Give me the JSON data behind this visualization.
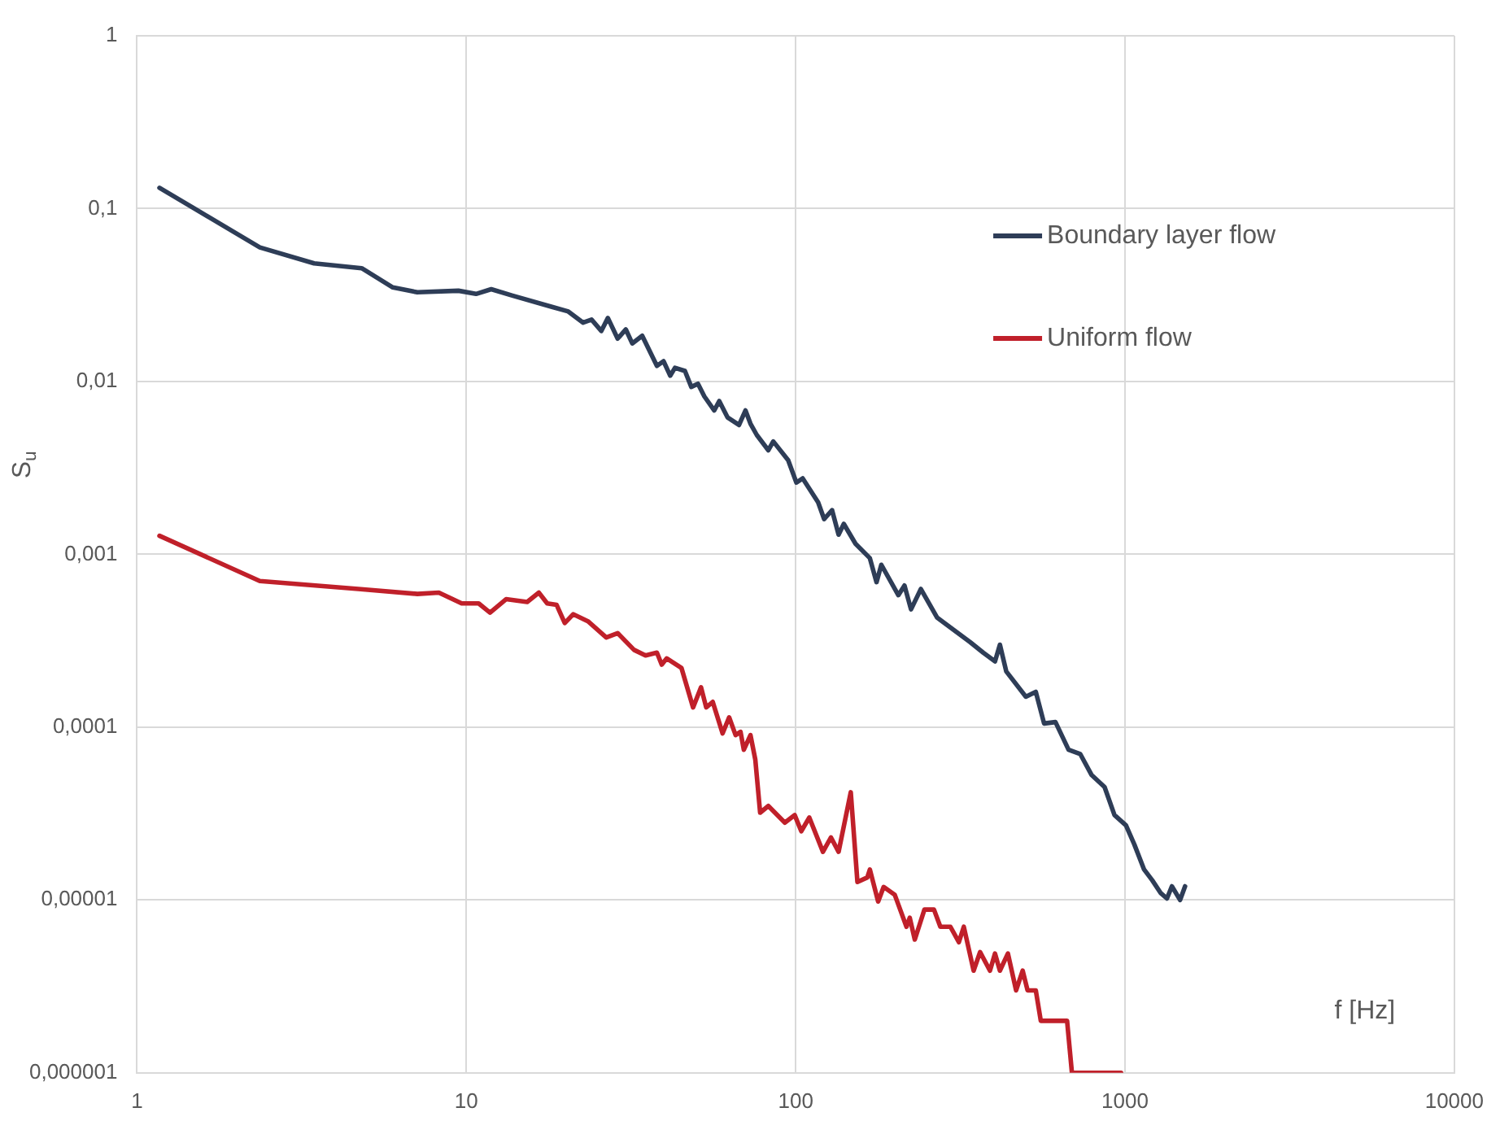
{
  "chart_data": {
    "type": "line",
    "xlabel": "f [Hz]",
    "ylabel": "S$_{u}$",
    "log": "xy",
    "grid": true,
    "legend": "top right",
    "marker": "none",
    "line_style": "solid",
    "xlim": [
      1,
      10000
    ],
    "xticks": [
      1,
      10,
      100,
      1000,
      10000
    ],
    "ylim": [
      1e-06,
      1
    ],
    "yticks": [
      {
        "value": 1e-06,
        "label": "0,000001"
      },
      {
        "value": 1e-05,
        "label": "0,00001"
      },
      {
        "value": 0.0001,
        "label": "0,0001"
      },
      {
        "value": 0.001,
        "label": "0,001"
      },
      {
        "value": 0.01,
        "label": "0,01"
      },
      {
        "value": 0.1,
        "label": "0,1"
      },
      {
        "value": 1,
        "label": "1"
      }
    ],
    "series": [
      {
        "name": "Boundary layer flow",
        "color": "#2e3d57",
        "x": [
          1.17,
          2.36,
          3.45,
          4.81,
          5.98,
          7.1,
          9.46,
          10.7,
          11.9,
          13.8,
          18.2,
          20.4,
          22.6,
          24,
          25.7,
          26.9,
          28.8,
          30.5,
          31.9,
          34.2,
          37.9,
          39.7,
          41.6,
          43,
          46.1,
          48.2,
          50.5,
          52.8,
          56.6,
          58.6,
          62.1,
          67.3,
          70.4,
          72.9,
          76.2,
          82.6,
          85.5,
          94.9,
          100.5,
          105,
          117,
          122,
          129,
          135,
          140,
          152,
          168,
          176,
          182,
          205,
          214,
          224,
          240,
          269,
          339,
          371,
          403,
          417,
          436,
          500,
          536,
          568,
          615,
          674,
          731,
          791,
          867,
          929,
          1007,
          1067,
          1143,
          1210,
          1282,
          1341,
          1388,
          1470,
          1522
        ],
        "values": [
          0.132,
          0.0597,
          0.0482,
          0.0452,
          0.035,
          0.0328,
          0.0335,
          0.0321,
          0.0342,
          0.0314,
          0.027,
          0.0254,
          0.0219,
          0.0228,
          0.0196,
          0.0233,
          0.0177,
          0.02,
          0.0166,
          0.0184,
          0.0123,
          0.0131,
          0.0108,
          0.012,
          0.0115,
          0.0093,
          0.0097,
          0.0082,
          0.0068,
          0.0077,
          0.0062,
          0.0056,
          0.0068,
          0.0057,
          0.0049,
          0.004,
          0.0045,
          0.0035,
          0.0026,
          0.00275,
          0.002,
          0.0016,
          0.0018,
          0.0013,
          0.0015,
          0.00115,
          0.00095,
          0.00069,
          0.00087,
          0.00058,
          0.00066,
          0.00048,
          0.00063,
          0.00043,
          0.00031,
          0.00027,
          0.00024,
          0.0003,
          0.00021,
          0.00015,
          0.00016,
          0.000105,
          0.000107,
          7.4e-05,
          7e-05,
          5.3e-05,
          4.5e-05,
          3.1e-05,
          2.7e-05,
          2.1e-05,
          1.5e-05,
          1.3e-05,
          1.1e-05,
          1.02e-05,
          1.2e-05,
          1e-05,
          1.2e-05
        ]
      },
      {
        "name": "Uniform flow",
        "color": "#c0202a",
        "x": [
          1.17,
          2.36,
          4.7,
          7.1,
          8.25,
          9.68,
          10.9,
          11.8,
          13.2,
          15.3,
          16.6,
          17.6,
          18.8,
          19.9,
          21.1,
          23.4,
          26.6,
          28.8,
          32.3,
          35,
          37.9,
          39.2,
          40.6,
          45,
          48.8,
          51.6,
          53.5,
          56,
          60,
          62.8,
          65.7,
          68,
          69.6,
          72.9,
          75.4,
          78,
          82.6,
          92.7,
          99.3,
          104,
          110,
          121,
          128,
          135,
          147,
          154,
          165,
          168,
          178,
          185,
          200,
          217,
          222,
          230,
          246,
          263,
          275,
          295,
          313,
          324,
          347,
          363,
          389,
          403,
          417,
          441,
          467,
          489,
          506,
          536,
          555,
          667,
          690,
          973
        ],
        "values": [
          0.00128,
          0.0007,
          0.00063,
          0.00059,
          0.0006,
          0.00052,
          0.00052,
          0.00046,
          0.00055,
          0.00053,
          0.0006,
          0.00052,
          0.00051,
          0.0004,
          0.00045,
          0.00041,
          0.00033,
          0.00035,
          0.00028,
          0.00026,
          0.00027,
          0.00023,
          0.00025,
          0.00022,
          0.00013,
          0.00017,
          0.00013,
          0.00014,
          9.2e-05,
          0.000114,
          9e-05,
          9.4e-05,
          7.4e-05,
          9e-05,
          6.5e-05,
          3.2e-05,
          3.5e-05,
          2.8e-05,
          3.1e-05,
          2.5e-05,
          3e-05,
          1.9e-05,
          2.3e-05,
          1.9e-05,
          4.2e-05,
          1.27e-05,
          1.35e-05,
          1.5e-05,
          9.8e-06,
          1.19e-05,
          1.07e-05,
          7e-06,
          7.9e-06,
          5.9e-06,
          8.8e-06,
          8.8e-06,
          7e-06,
          7e-06,
          5.7e-06,
          7e-06,
          3.9e-06,
          5e-06,
          3.9e-06,
          4.9e-06,
          3.9e-06,
          4.9e-06,
          3e-06,
          3.9e-06,
          3e-06,
          3e-06,
          2e-06,
          2e-06,
          1e-06,
          1e-06
        ]
      }
    ]
  }
}
